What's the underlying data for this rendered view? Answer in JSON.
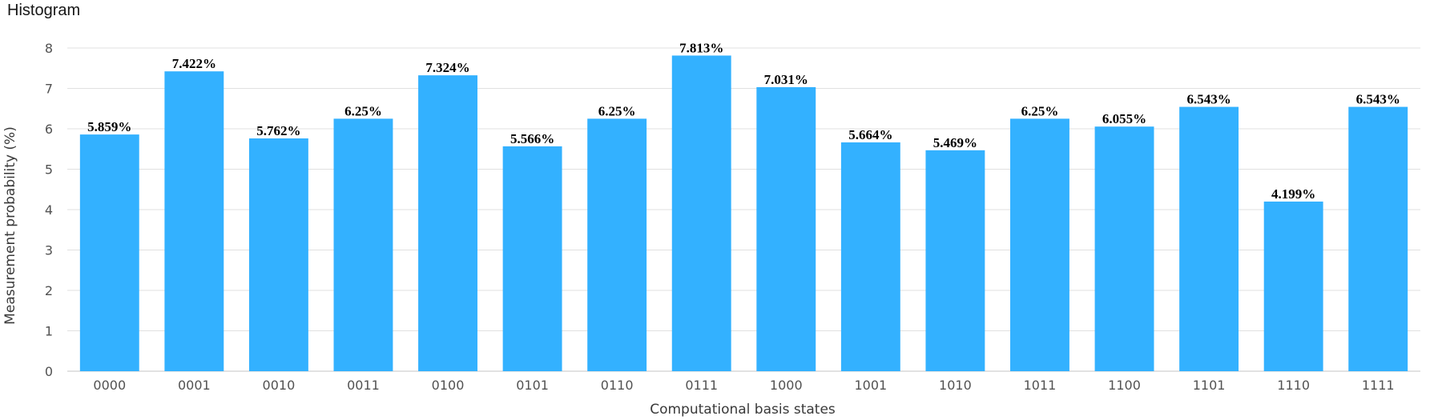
{
  "chart_data": {
    "type": "bar",
    "title": "Histogram",
    "xlabel": "Computational basis states",
    "ylabel": "Measurement probability (%)",
    "categories": [
      "0000",
      "0001",
      "0010",
      "0011",
      "0100",
      "0101",
      "0110",
      "0111",
      "1000",
      "1001",
      "1010",
      "1011",
      "1100",
      "1101",
      "1110",
      "1111"
    ],
    "values": [
      5.859,
      7.422,
      5.762,
      6.25,
      7.324,
      5.566,
      6.25,
      7.813,
      7.031,
      5.664,
      5.469,
      6.25,
      6.055,
      6.543,
      4.199,
      6.543
    ],
    "value_labels": [
      "5.859%",
      "7.422%",
      "5.762%",
      "6.25%",
      "7.324%",
      "5.566%",
      "6.25%",
      "7.813%",
      "7.031%",
      "5.664%",
      "5.469%",
      "6.25%",
      "6.055%",
      "6.543%",
      "4.199%",
      "6.543%"
    ],
    "ylim": [
      0,
      8
    ],
    "yticks": [
      "0",
      "1",
      "2",
      "3",
      "4",
      "5",
      "6",
      "7",
      "8"
    ],
    "grid": true,
    "bar_color": "#33b1ff",
    "grid_color": "#e0e0e0"
  }
}
